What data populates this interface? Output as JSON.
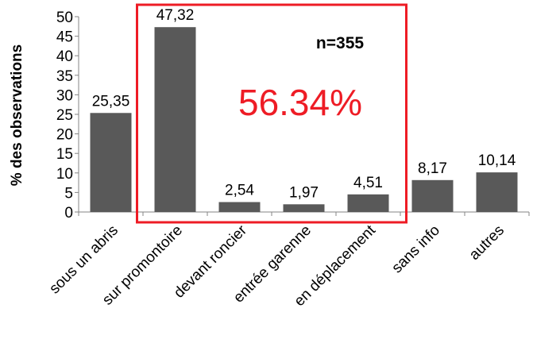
{
  "chart_data": {
    "type": "bar",
    "ylabel": "% des observations",
    "xlabel": "",
    "ylim": [
      0,
      50
    ],
    "yticks": [
      0,
      5,
      10,
      15,
      20,
      25,
      30,
      35,
      40,
      45,
      50
    ],
    "grid": false,
    "categories": [
      "sous un abris",
      "sur promontoire",
      "devant roncier",
      "entrée garenne",
      "en déplacement",
      "sans info",
      "autres"
    ],
    "values": [
      25.35,
      47.32,
      2.54,
      1.97,
      4.51,
      8.17,
      10.14
    ],
    "value_labels": [
      "25,35",
      "47,32",
      "2,54",
      "1,97",
      "4,51",
      "8,17",
      "10,14"
    ],
    "bar_color": "#595959",
    "annotations": {
      "n": "n=355",
      "highlight_percent": "56.34%",
      "highlight_color": "#ee1c25",
      "highlight_categories": [
        "sur promontoire",
        "devant roncier",
        "entrée garenne",
        "en déplacement"
      ]
    }
  }
}
